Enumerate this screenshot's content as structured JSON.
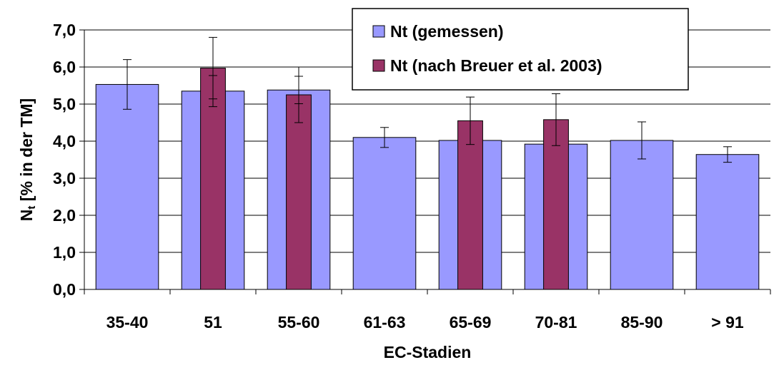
{
  "chart_data": {
    "type": "bar",
    "title": "",
    "xlabel": "EC-Stadien",
    "ylabel_main": "N",
    "ylabel_sub": "t",
    "ylabel_rest": " [% in der TM]",
    "ylim": [
      0,
      7
    ],
    "yticks": [
      "0,0",
      "1,0",
      "2,0",
      "3,0",
      "4,0",
      "5,0",
      "6,0",
      "7,0"
    ],
    "categories": [
      "35-40",
      "51",
      "55-60",
      "61-63",
      "65-69",
      "70-81",
      "85-90",
      "> 91"
    ],
    "grid": "horizontal",
    "legend_position": "top-right",
    "series": [
      {
        "name": "Nt (gemessen)",
        "color": "#9999ff",
        "values": [
          5.53,
          5.35,
          5.38,
          4.1,
          4.02,
          3.92,
          4.02,
          3.64
        ],
        "err": [
          0.67,
          0.42,
          0.37,
          0.27,
          0.0,
          0.0,
          0.5,
          0.21
        ]
      },
      {
        "name": "Nt (nach Breuer et al. 2003)",
        "color": "#993366",
        "values": [
          null,
          5.97,
          5.25,
          null,
          4.55,
          4.58,
          null,
          null
        ],
        "err": [
          null,
          0.83,
          0.75,
          null,
          0.64,
          0.7,
          null,
          null
        ]
      }
    ]
  }
}
